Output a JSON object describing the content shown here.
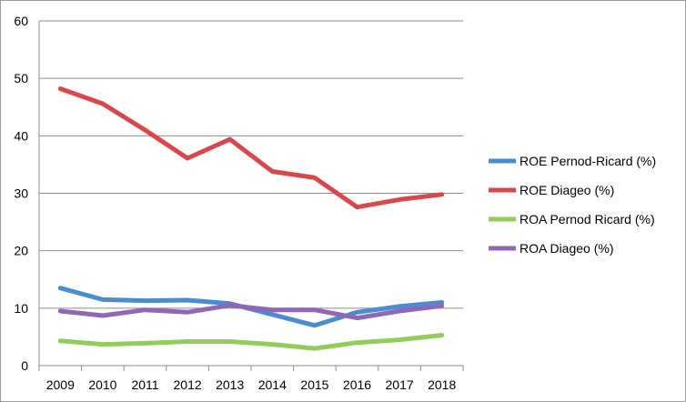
{
  "chart_data": {
    "type": "line",
    "title": "",
    "xlabel": "",
    "ylabel": "",
    "x": [
      "2009",
      "2010",
      "2011",
      "2012",
      "2013",
      "2014",
      "2015",
      "2016",
      "2017",
      "2018"
    ],
    "ylim": [
      0,
      60
    ],
    "yticks": [
      "0",
      "10",
      "20",
      "30",
      "40",
      "50",
      "60"
    ],
    "grid": "horizontal",
    "legend_position": "right",
    "series": [
      {
        "name": "ROE Pernod-Ricard (%)",
        "color": "#4a8ccf",
        "values": [
          13.5,
          11.5,
          11.3,
          11.4,
          10.8,
          8.9,
          7.0,
          9.3,
          10.3,
          11.0
        ]
      },
      {
        "name": "ROE Diageo (%)",
        "color": "#d9474a",
        "values": [
          48.2,
          45.6,
          41.0,
          36.1,
          39.4,
          33.8,
          32.7,
          27.6,
          28.9,
          29.8
        ]
      },
      {
        "name": "ROA Pernod Ricard (%)",
        "color": "#92cc5a",
        "values": [
          4.3,
          3.7,
          3.9,
          4.2,
          4.2,
          3.7,
          3.0,
          4.0,
          4.5,
          5.3
        ]
      },
      {
        "name": "ROA Diageo (%)",
        "color": "#9067b4",
        "values": [
          9.5,
          8.7,
          9.7,
          9.3,
          10.5,
          9.7,
          9.7,
          8.3,
          9.5,
          10.4
        ]
      }
    ]
  }
}
